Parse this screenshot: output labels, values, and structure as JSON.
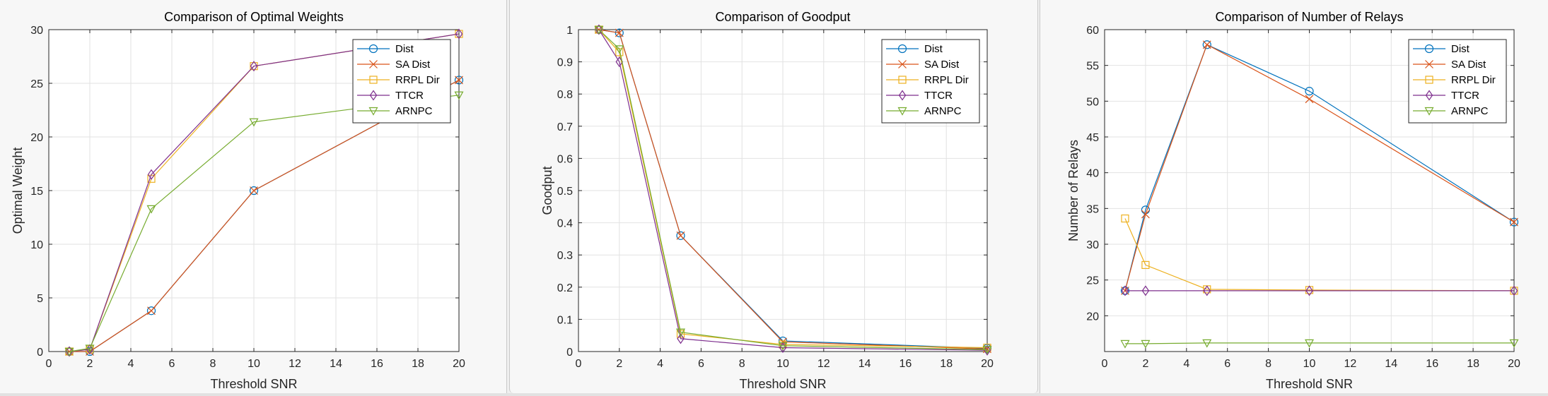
{
  "chart_data": [
    {
      "type": "line",
      "title": "Comparison of Optimal Weights",
      "xlabel": "Threshold SNR",
      "ylabel": "Optimal Weight",
      "xlim": [
        0,
        20
      ],
      "ylim": [
        0,
        30
      ],
      "xticks": [
        0,
        2,
        4,
        6,
        8,
        10,
        12,
        14,
        16,
        18,
        20
      ],
      "yticks": [
        0,
        5,
        10,
        15,
        20,
        25,
        30
      ],
      "grid": true,
      "legend_position": "top-right",
      "x": [
        1,
        2,
        5,
        10,
        20
      ],
      "series": [
        {
          "name": "Dist",
          "values": [
            0,
            0,
            3.8,
            15,
            25.3
          ],
          "color": "#0072bd",
          "marker": "circle"
        },
        {
          "name": "SA Dist",
          "values": [
            0,
            0,
            3.8,
            15,
            25.3
          ],
          "color": "#d95319",
          "marker": "x"
        },
        {
          "name": "RRPL Dir",
          "values": [
            0,
            0.2,
            16.1,
            26.6,
            29.6
          ],
          "color": "#edb120",
          "marker": "square"
        },
        {
          "name": "TTCR",
          "values": [
            0,
            0.2,
            16.5,
            26.6,
            29.6
          ],
          "color": "#7e2f8e",
          "marker": "diamond"
        },
        {
          "name": "ARNPC",
          "values": [
            0,
            0.3,
            13.3,
            21.4,
            23.9
          ],
          "color": "#77ac30",
          "marker": "triangle-down"
        }
      ]
    },
    {
      "type": "line",
      "title": "Comparison of Goodput",
      "xlabel": "Threshold SNR",
      "ylabel": "Goodput",
      "xlim": [
        0,
        20
      ],
      "ylim": [
        0,
        1
      ],
      "xticks": [
        0,
        2,
        4,
        6,
        8,
        10,
        12,
        14,
        16,
        18,
        20
      ],
      "yticks": [
        0,
        0.1,
        0.2,
        0.3,
        0.4,
        0.5,
        0.6,
        0.7,
        0.8,
        0.9,
        1
      ],
      "grid": true,
      "legend_position": "top-right",
      "x": [
        1,
        2,
        5,
        10,
        20
      ],
      "series": [
        {
          "name": "Dist",
          "values": [
            1,
            0.99,
            0.36,
            0.033,
            0.01
          ],
          "color": "#0072bd",
          "marker": "circle"
        },
        {
          "name": "SA Dist",
          "values": [
            1,
            0.99,
            0.36,
            0.03,
            0.008
          ],
          "color": "#d95319",
          "marker": "x"
        },
        {
          "name": "RRPL Dir",
          "values": [
            1,
            0.93,
            0.055,
            0.022,
            0.012
          ],
          "color": "#edb120",
          "marker": "square"
        },
        {
          "name": "TTCR",
          "values": [
            1,
            0.9,
            0.04,
            0.012,
            0.004
          ],
          "color": "#7e2f8e",
          "marker": "diamond"
        },
        {
          "name": "ARNPC",
          "values": [
            1,
            0.94,
            0.06,
            0.018,
            0.006
          ],
          "color": "#77ac30",
          "marker": "triangle-down"
        }
      ]
    },
    {
      "type": "line",
      "title": "Comparison of Number of Relays",
      "xlabel": "Threshold SNR",
      "ylabel": "Number of Relays",
      "xlim": [
        0,
        20
      ],
      "ylim": [
        15,
        60
      ],
      "xticks": [
        0,
        2,
        4,
        6,
        8,
        10,
        12,
        14,
        16,
        18,
        20
      ],
      "yticks": [
        20,
        25,
        30,
        35,
        40,
        45,
        50,
        55,
        60
      ],
      "grid": true,
      "legend_position": "top-right",
      "x": [
        1,
        2,
        5,
        10,
        20
      ],
      "series": [
        {
          "name": "Dist",
          "values": [
            23.5,
            34.8,
            57.9,
            51.4,
            33.1
          ],
          "color": "#0072bd",
          "marker": "circle"
        },
        {
          "name": "SA Dist",
          "values": [
            23.5,
            34.2,
            57.9,
            50.3,
            33.1
          ],
          "color": "#d95319",
          "marker": "x"
        },
        {
          "name": "RRPL Dir",
          "values": [
            33.6,
            27.1,
            23.7,
            23.6,
            23.5
          ],
          "color": "#edb120",
          "marker": "square"
        },
        {
          "name": "TTCR",
          "values": [
            23.5,
            23.5,
            23.5,
            23.5,
            23.5
          ],
          "color": "#7e2f8e",
          "marker": "diamond"
        },
        {
          "name": "ARNPC",
          "values": [
            16.1,
            16.1,
            16.2,
            16.2,
            16.2
          ],
          "color": "#77ac30",
          "marker": "triangle-down"
        }
      ]
    }
  ]
}
